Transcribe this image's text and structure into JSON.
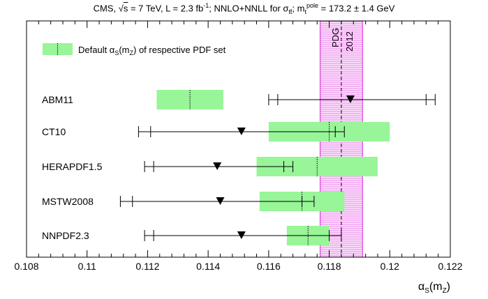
{
  "chart_data": {
    "type": "interval",
    "title": {
      "lead": "CMS,",
      "sqrt_s": "s",
      "after_sqrt": " = 7 TeV, L = 2.3 fb",
      "lumi_exp": "-1",
      "after_lumi": "; NNLO+NNLL for σ",
      "sigma_sub": "tt̄",
      "after_sigma": "; m",
      "mt_sub": "t",
      "mt_sup": "pole",
      "after_mt": " = 173.2 ± 1.4 GeV"
    },
    "xlabel": "α",
    "xlabel_sub": "S",
    "xlabel_arg": "(m",
    "xlabel_arg_sub": "Z",
    "xlabel_close": ")",
    "xlim": [
      0.108,
      0.122
    ],
    "xticks": [
      0.108,
      0.11,
      0.112,
      0.114,
      0.116,
      0.118,
      0.12,
      0.122
    ],
    "xtick_labels": [
      "0.108",
      "0.11",
      "0.112",
      "0.114",
      "0.116",
      "0.118",
      "0.12",
      "0.122"
    ],
    "legend": {
      "text": "Default α",
      "text_sub": "S",
      "text_after": "(m",
      "text_after_sub": "Z",
      "text_end": ") of respective PDF set",
      "placement": "top-left"
    },
    "pdg_band": {
      "label_pdg": "PDG",
      "label_year": "2012",
      "center": 0.1184,
      "low": 0.1177,
      "high": 0.1191,
      "color": "#e040e0"
    },
    "default_color": "#98f598",
    "series": [
      {
        "name": "ABM11",
        "default_center": 0.1134,
        "default_low": 0.1123,
        "default_high": 0.1145,
        "value": 0.1187,
        "inner": [
          0.1163,
          0.1212
        ],
        "outer": [
          0.116,
          0.1215
        ]
      },
      {
        "name": "CT10",
        "default_center": 0.118,
        "default_low": 0.116,
        "default_high": 0.12,
        "value": 0.1151,
        "inner": [
          0.1121,
          0.1182
        ],
        "outer": [
          0.1117,
          0.1185
        ]
      },
      {
        "name": "HERAPDF1.5",
        "default_center": 0.1176,
        "default_low": 0.1156,
        "default_high": 0.1196,
        "value": 0.1143,
        "inner": [
          0.1122,
          0.1165
        ],
        "outer": [
          0.1119,
          0.1168
        ]
      },
      {
        "name": "MSTW2008",
        "default_center": 0.1171,
        "default_low": 0.1157,
        "default_high": 0.1185,
        "value": 0.1144,
        "inner": [
          0.1115,
          0.1171
        ],
        "outer": [
          0.1111,
          0.1175
        ]
      },
      {
        "name": "NNPDF2.3",
        "default_center": 0.1173,
        "default_low": 0.1166,
        "default_high": 0.118,
        "value": 0.1151,
        "inner": [
          0.1122,
          0.118
        ],
        "outer": [
          0.1119,
          0.1184
        ]
      }
    ]
  }
}
